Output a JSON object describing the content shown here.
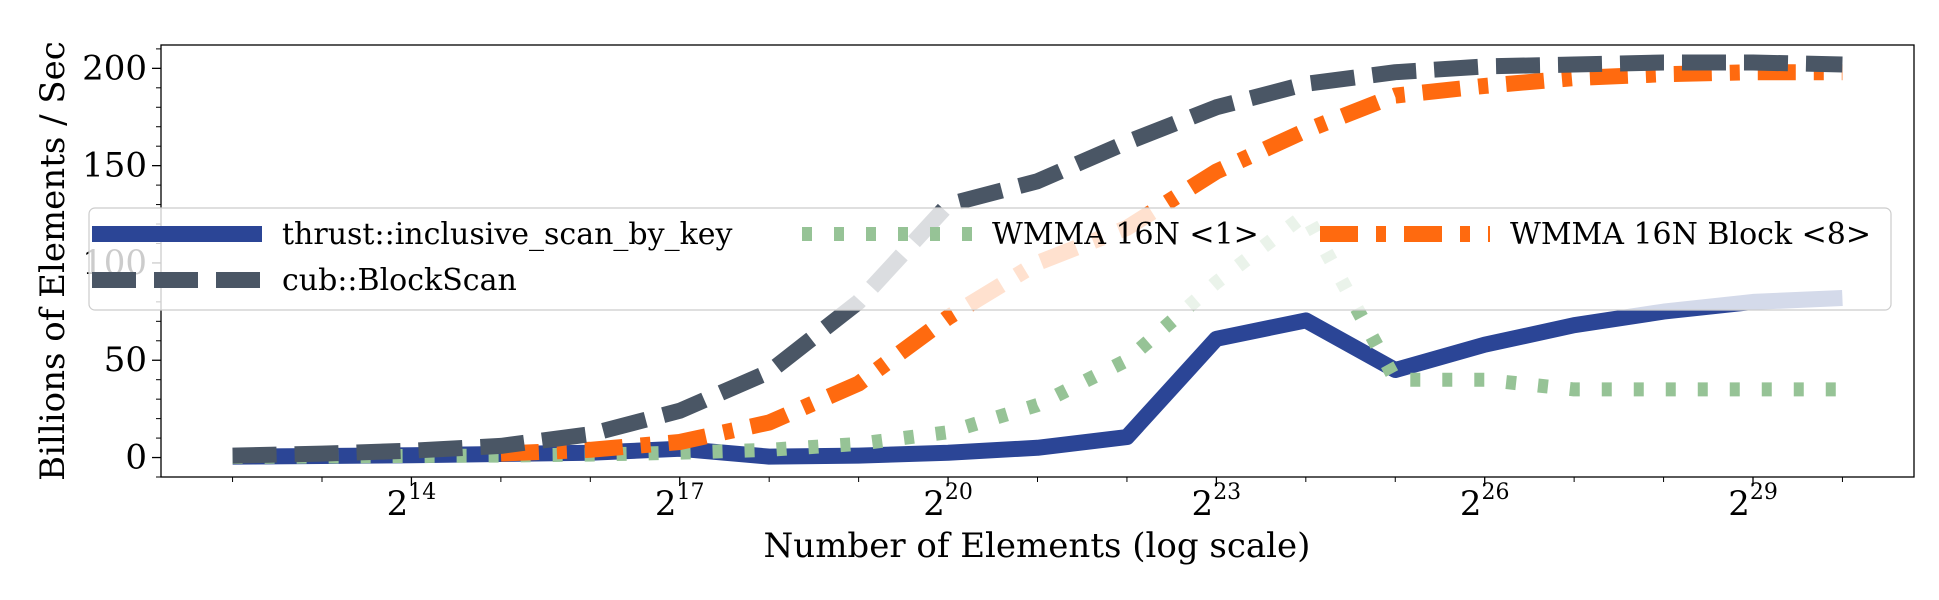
{
  "chart_data": {
    "type": "line",
    "title": "",
    "xlabel": "Number of Elements (log scale)",
    "ylabel": "Billions of Elements / Sec",
    "xscale": "log2",
    "x_exponents": [
      12,
      13,
      14,
      15,
      16,
      17,
      18,
      19,
      20,
      21,
      22,
      23,
      24,
      25,
      26,
      27,
      28,
      29,
      30
    ],
    "xlim_exponent": [
      11.2,
      30.8
    ],
    "ylim": [
      -10,
      212
    ],
    "x_ticks": [
      {
        "base": "2",
        "exp": "14",
        "value": 14
      },
      {
        "base": "2",
        "exp": "17",
        "value": 17
      },
      {
        "base": "2",
        "exp": "20",
        "value": 20
      },
      {
        "base": "2",
        "exp": "23",
        "value": 23
      },
      {
        "base": "2",
        "exp": "26",
        "value": 26
      },
      {
        "base": "2",
        "exp": "29",
        "value": 29
      }
    ],
    "y_ticks": [
      0,
      50,
      100,
      150,
      200
    ],
    "legend_position": "center",
    "grid": false,
    "series": [
      {
        "name": "thrust::inclusive_scan_by_key",
        "color": "#2b4596",
        "style": "solid",
        "values": [
          0.5,
          0.8,
          1.2,
          1.8,
          2.5,
          4.5,
          0.5,
          1.0,
          2.5,
          5.0,
          10.5,
          61,
          70.5,
          45,
          58,
          68,
          75,
          80,
          82
        ]
      },
      {
        "name": "WMMA 16N <1>",
        "color": "#96c396",
        "style": "dotted",
        "values": [
          0.3,
          0.5,
          0.8,
          1.0,
          1.5,
          2.5,
          4.0,
          7.0,
          13.0,
          27.0,
          50.0,
          90.0,
          125.0,
          40.0,
          40.0,
          35.0,
          35.0,
          35.0,
          35.0
        ]
      },
      {
        "name": "WMMA 16N Block <8>",
        "color": "#ff6a0f",
        "style": "dashdot",
        "values": [
          null,
          null,
          null,
          2.0,
          4.0,
          8.0,
          18.0,
          38.0,
          72.0,
          100.0,
          118.0,
          147.0,
          168.0,
          186.0,
          191.0,
          195.0,
          197.0,
          198.0,
          198.0
        ]
      },
      {
        "name": "cub::BlockScan",
        "color": "#4a5665",
        "style": "dashed",
        "values": [
          1.0,
          2.0,
          3.5,
          6.0,
          12.0,
          24.0,
          44.0,
          80.0,
          130.0,
          142.0,
          162.0,
          180.0,
          192.0,
          198.0,
          201.0,
          202.0,
          203.0,
          203.0,
          202.0
        ]
      }
    ],
    "legend_rows": [
      [
        "thrust::inclusive_scan_by_key",
        "WMMA 16N <1>",
        "WMMA 16N Block <8>"
      ],
      [
        "cub::BlockScan"
      ]
    ]
  }
}
